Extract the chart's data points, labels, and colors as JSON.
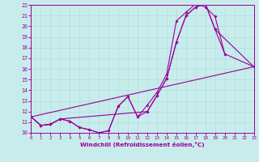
{
  "xlabel": "Windchill (Refroidissement éolien,°C)",
  "bg_color": "#c8ecec",
  "line_color": "#990099",
  "grid_color": "#b0dede",
  "xlim": [
    0,
    23
  ],
  "ylim": [
    10,
    22
  ],
  "xticks": [
    0,
    1,
    2,
    3,
    4,
    5,
    6,
    7,
    8,
    9,
    10,
    11,
    12,
    13,
    14,
    15,
    16,
    17,
    18,
    19,
    20,
    21,
    22,
    23
  ],
  "yticks": [
    10,
    11,
    12,
    13,
    14,
    15,
    16,
    17,
    18,
    19,
    20,
    21,
    22
  ],
  "series": [
    {
      "x": [
        0,
        1,
        2,
        3,
        4,
        5,
        6,
        7,
        8,
        9,
        10,
        11,
        12,
        13,
        14,
        15,
        16,
        17,
        18,
        19,
        20
      ],
      "y": [
        11.5,
        10.7,
        10.8,
        11.3,
        11.1,
        10.5,
        10.3,
        10.0,
        10.2,
        12.5,
        13.4,
        11.5,
        12.6,
        13.8,
        15.5,
        20.5,
        21.3,
        22.1,
        21.8,
        20.9,
        17.4
      ]
    },
    {
      "x": [
        0,
        1,
        2,
        3,
        12,
        13,
        14,
        15,
        16,
        17,
        18,
        19,
        23
      ],
      "y": [
        11.5,
        10.7,
        10.8,
        11.3,
        12.0,
        13.5,
        15.1,
        18.5,
        21.0,
        21.8,
        22.1,
        19.7,
        16.2
      ]
    },
    {
      "x": [
        0,
        23
      ],
      "y": [
        11.5,
        16.2
      ]
    },
    {
      "x": [
        0,
        1,
        2,
        3,
        4,
        5,
        6,
        7,
        8,
        9,
        10,
        11,
        12,
        13,
        14,
        15,
        16,
        17,
        18,
        19,
        20,
        23
      ],
      "y": [
        11.5,
        10.7,
        10.8,
        11.3,
        11.1,
        10.5,
        10.3,
        10.0,
        10.2,
        12.5,
        13.4,
        11.5,
        12.0,
        13.5,
        15.1,
        18.5,
        21.0,
        21.8,
        22.1,
        19.7,
        17.4,
        16.2
      ]
    }
  ]
}
